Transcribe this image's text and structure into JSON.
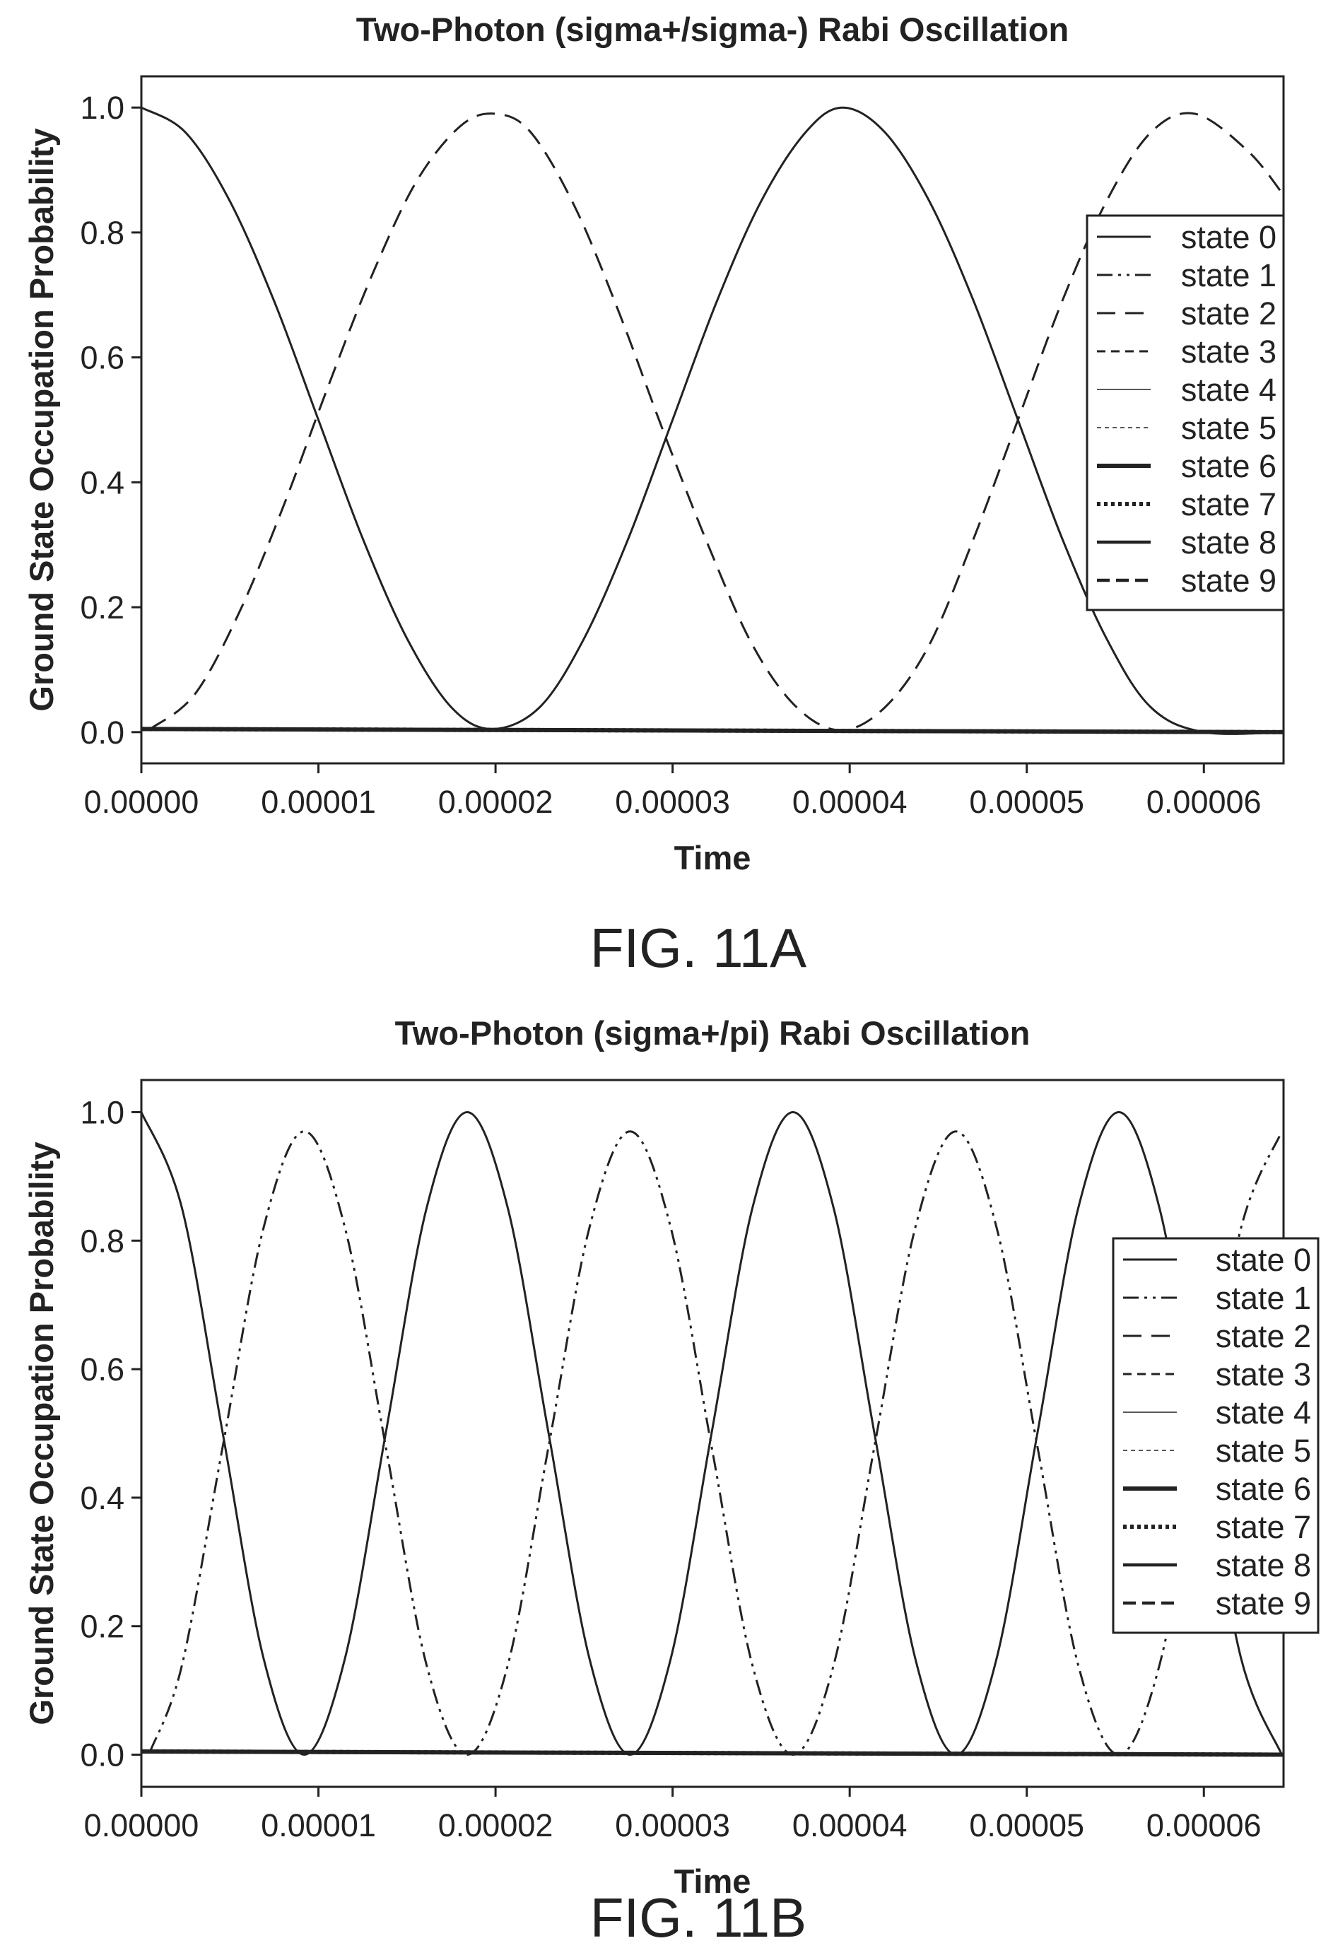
{
  "chart_data": [
    {
      "type": "line",
      "title": "Two-Photon (sigma+/sigma-) Rabi Oscillation",
      "xlabel": "Time",
      "ylabel": "Ground State Occupation Probability",
      "caption": "FIG. 11A",
      "xlim": [
        0,
        6.45e-05
      ],
      "ylim": [
        -0.05,
        1.05
      ],
      "xticks": [
        "0.00000",
        "0.00001",
        "0.00002",
        "0.00003",
        "0.00004",
        "0.00005",
        "0.00006"
      ],
      "yticks": [
        "0.0",
        "0.2",
        "0.4",
        "0.6",
        "0.8",
        "1.0"
      ],
      "grid": false,
      "legend_position": "right",
      "legend": [
        "state 0",
        "state 1",
        "state 2",
        "state 3",
        "state 4",
        "state 5",
        "state 6",
        "state 7",
        "state 8",
        "state 9"
      ],
      "series": [
        {
          "name": "state 0",
          "x": [
            0,
            2.5e-06,
            5e-06,
            7.5e-06,
            1e-05,
            1.25e-05,
            1.5e-05,
            1.75e-05,
            1.98e-05,
            2.25e-05,
            2.5e-05,
            2.75e-05,
            3e-05,
            3.25e-05,
            3.5e-05,
            3.75e-05,
            3.96e-05,
            4.2e-05,
            4.45e-05,
            4.7e-05,
            4.95e-05,
            5.2e-05,
            5.45e-05,
            5.7e-05,
            6e-05,
            6.45e-05
          ],
          "y": [
            1.0,
            0.96,
            0.85,
            0.69,
            0.5,
            0.31,
            0.15,
            0.04,
            0.005,
            0.04,
            0.15,
            0.31,
            0.5,
            0.69,
            0.85,
            0.96,
            1.0,
            0.96,
            0.85,
            0.69,
            0.5,
            0.31,
            0.15,
            0.04,
            0.0,
            0.0
          ]
        },
        {
          "name": "state 1",
          "x": [
            0,
            6.45e-05
          ],
          "y": [
            0.005,
            0.0
          ]
        },
        {
          "name": "state 2",
          "x": [
            5e-07,
            3e-06,
            5.5e-06,
            8e-06,
            1.05e-05,
            1.3e-05,
            1.55e-05,
            1.8e-05,
            2e-05,
            2.2e-05,
            2.45e-05,
            2.7e-05,
            2.95e-05,
            3.2e-05,
            3.45e-05,
            3.7e-05,
            3.95e-05,
            4.2e-05,
            4.45e-05,
            4.7e-05,
            4.95e-05,
            5.2e-05,
            5.45e-05,
            5.7e-05,
            5.95e-05,
            6.25e-05,
            6.45e-05
          ],
          "y": [
            0.005,
            0.06,
            0.19,
            0.36,
            0.55,
            0.73,
            0.88,
            0.97,
            0.99,
            0.96,
            0.84,
            0.67,
            0.48,
            0.3,
            0.14,
            0.04,
            0.003,
            0.04,
            0.14,
            0.31,
            0.5,
            0.69,
            0.85,
            0.96,
            0.99,
            0.93,
            0.86
          ]
        },
        {
          "name": "state 3",
          "x": [
            0,
            6.45e-05
          ],
          "y": [
            0.005,
            0.0
          ]
        },
        {
          "name": "state 4",
          "x": [
            0,
            6.45e-05
          ],
          "y": [
            0.005,
            0.0
          ]
        },
        {
          "name": "state 5",
          "x": [
            0,
            6.45e-05
          ],
          "y": [
            0.005,
            0.0
          ]
        },
        {
          "name": "state 6",
          "x": [
            0,
            6.45e-05
          ],
          "y": [
            0.005,
            0.0
          ]
        },
        {
          "name": "state 7",
          "x": [
            0,
            6.45e-05
          ],
          "y": [
            0.005,
            0.0
          ]
        },
        {
          "name": "state 8",
          "x": [
            0,
            6.45e-05
          ],
          "y": [
            0.005,
            0.0
          ]
        },
        {
          "name": "state 9",
          "x": [
            0,
            6.45e-05
          ],
          "y": [
            0.005,
            0.0
          ]
        }
      ]
    },
    {
      "type": "line",
      "title": "Two-Photon (sigma+/pi) Rabi Oscillation",
      "xlabel": "Time",
      "ylabel": "Ground State Occupation Probability",
      "caption": "FIG. 11B",
      "xlim": [
        0,
        6.45e-05
      ],
      "ylim": [
        -0.05,
        1.05
      ],
      "xticks": [
        "0.00000",
        "0.00001",
        "0.00002",
        "0.00003",
        "0.00004",
        "0.00005",
        "0.00006"
      ],
      "yticks": [
        "0.0",
        "0.2",
        "0.4",
        "0.6",
        "0.8",
        "1.0"
      ],
      "grid": false,
      "legend_position": "right",
      "legend": [
        "state 0",
        "state 1",
        "state 2",
        "state 3",
        "state 4",
        "state 5",
        "state 6",
        "state 7",
        "state 8",
        "state 9"
      ],
      "series": [
        {
          "name": "state 0",
          "x": [
            0,
            2.3e-06,
            4.6e-06,
            6.9e-06,
            9.2e-06,
            1.15e-05,
            1.38e-05,
            1.61e-05,
            1.84e-05,
            2.07e-05,
            2.3e-05,
            2.53e-05,
            2.76e-05,
            2.99e-05,
            3.22e-05,
            3.45e-05,
            3.68e-05,
            3.91e-05,
            4.14e-05,
            4.37e-05,
            4.6e-05,
            4.83e-05,
            5.06e-05,
            5.29e-05,
            5.52e-05,
            5.75e-05,
            5.98e-05,
            6.21e-05,
            6.44e-05
          ],
          "y": [
            1.0,
            0.85,
            0.5,
            0.15,
            0.0,
            0.15,
            0.5,
            0.85,
            1.0,
            0.85,
            0.5,
            0.15,
            0.0,
            0.15,
            0.5,
            0.85,
            1.0,
            0.85,
            0.5,
            0.15,
            0.0,
            0.15,
            0.5,
            0.85,
            1.0,
            0.85,
            0.5,
            0.15,
            0.0
          ]
        },
        {
          "name": "state 1",
          "x": [
            5e-07,
            2.3e-06,
            4.6e-06,
            6.9e-06,
            9.2e-06,
            1.15e-05,
            1.38e-05,
            1.61e-05,
            1.84e-05,
            2.07e-05,
            2.3e-05,
            2.53e-05,
            2.76e-05,
            2.99e-05,
            3.22e-05,
            3.45e-05,
            3.68e-05,
            3.91e-05,
            4.14e-05,
            4.37e-05,
            4.6e-05,
            4.83e-05,
            5.06e-05,
            5.29e-05,
            5.52e-05,
            5.75e-05,
            5.98e-05,
            6.21e-05,
            6.44e-05
          ],
          "y": [
            0.005,
            0.14,
            0.48,
            0.82,
            0.97,
            0.82,
            0.48,
            0.14,
            0.0,
            0.14,
            0.48,
            0.82,
            0.97,
            0.82,
            0.48,
            0.14,
            0.0,
            0.14,
            0.48,
            0.82,
            0.97,
            0.82,
            0.48,
            0.14,
            0.0,
            0.14,
            0.48,
            0.82,
            0.97
          ]
        },
        {
          "name": "state 2",
          "x": [
            0,
            6.45e-05
          ],
          "y": [
            0.005,
            0.0
          ]
        },
        {
          "name": "state 3",
          "x": [
            0,
            6.45e-05
          ],
          "y": [
            0.005,
            0.0
          ]
        },
        {
          "name": "state 4",
          "x": [
            0,
            6.45e-05
          ],
          "y": [
            0.005,
            0.0
          ]
        },
        {
          "name": "state 5",
          "x": [
            0,
            6.45e-05
          ],
          "y": [
            0.005,
            0.0
          ]
        },
        {
          "name": "state 6",
          "x": [
            0,
            6.45e-05
          ],
          "y": [
            0.005,
            0.0
          ]
        },
        {
          "name": "state 7",
          "x": [
            0,
            6.45e-05
          ],
          "y": [
            0.005,
            0.0
          ]
        },
        {
          "name": "state 8",
          "x": [
            0,
            6.45e-05
          ],
          "y": [
            0.005,
            0.0
          ]
        },
        {
          "name": "state 9",
          "x": [
            0,
            6.45e-05
          ],
          "y": [
            0.005,
            0.0
          ]
        }
      ]
    }
  ]
}
